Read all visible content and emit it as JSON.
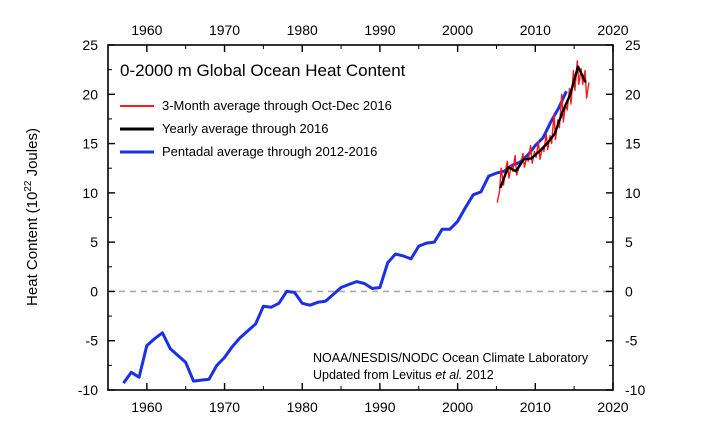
{
  "chart_data": {
    "type": "line",
    "title": "0-2000 m Global Ocean Heat Content",
    "ylabel": {
      "prefix": "Heat Content (10",
      "exponent": "22",
      "suffix": " Joules)"
    },
    "xlabel": "",
    "xlim": [
      1955,
      2020
    ],
    "ylim": [
      -10,
      25
    ],
    "xticks": [
      1960,
      1970,
      1980,
      1990,
      2000,
      2010,
      2020
    ],
    "yticks": [
      -10,
      -5,
      0,
      5,
      10,
      15,
      20,
      25
    ],
    "zero_line": {
      "value": 0,
      "color": "#aaaaaa",
      "style": "dashed"
    },
    "credit": {
      "line1": "NOAA/NESDIS/NODC Ocean Climate Laboratory",
      "line2_prefix": "Updated from Levitus ",
      "line2_italic": "et al.",
      "line2_suffix": " 2012"
    },
    "series": [
      {
        "name": "3-Month average through Oct-Dec 2016",
        "color": "#ff1a1a",
        "x": [
          2005.1,
          2005.4,
          2005.6,
          2005.9,
          2006.1,
          2006.4,
          2006.6,
          2006.9,
          2007.1,
          2007.4,
          2007.6,
          2007.9,
          2008.1,
          2008.4,
          2008.6,
          2008.9,
          2009.1,
          2009.4,
          2009.6,
          2009.9,
          2010.1,
          2010.4,
          2010.6,
          2010.9,
          2011.1,
          2011.4,
          2011.6,
          2011.9,
          2012.1,
          2012.4,
          2012.6,
          2012.9,
          2013.1,
          2013.4,
          2013.6,
          2013.9,
          2014.1,
          2014.4,
          2014.6,
          2014.9,
          2015.1,
          2015.4,
          2015.6,
          2015.9,
          2016.1,
          2016.4,
          2016.6,
          2016.9
        ],
        "values": [
          9.0,
          10.2,
          12.5,
          10.8,
          12.0,
          13.2,
          11.5,
          12.8,
          12.2,
          13.8,
          11.8,
          12.6,
          12.8,
          14.0,
          12.6,
          13.6,
          13.2,
          14.8,
          13.0,
          14.2,
          13.6,
          15.2,
          13.4,
          14.6,
          14.2,
          16.0,
          14.4,
          15.8,
          15.0,
          18.0,
          15.4,
          17.4,
          16.6,
          20.0,
          17.2,
          19.0,
          18.4,
          20.6,
          19.0,
          22.4,
          20.4,
          23.4,
          21.0,
          22.6,
          21.0,
          22.4,
          19.6,
          21.2
        ]
      },
      {
        "name": "Yearly average through 2016",
        "color": "#000000",
        "x": [
          2005.5,
          2006.5,
          2007.5,
          2008.5,
          2009.5,
          2010.5,
          2011.5,
          2012.5,
          2013.5,
          2014.5,
          2015.5,
          2016.5
        ],
        "values": [
          10.5,
          12.6,
          12.2,
          13.4,
          13.5,
          14.2,
          15.0,
          16.0,
          18.2,
          20.0,
          22.8,
          21.2
        ]
      },
      {
        "name": "Pentadal average through 2012-2016",
        "color": "#1a2fe6",
        "x": [
          1957,
          1958,
          1959,
          1960,
          1961,
          1962,
          1963,
          1964,
          1965,
          1966,
          1967,
          1968,
          1969,
          1970,
          1971,
          1972,
          1973,
          1974,
          1975,
          1976,
          1977,
          1978,
          1979,
          1980,
          1981,
          1982,
          1983,
          1984,
          1985,
          1986,
          1987,
          1988,
          1989,
          1990,
          1991,
          1992,
          1993,
          1994,
          1995,
          1996,
          1997,
          1998,
          1999,
          2000,
          2001,
          2002,
          2003,
          2004,
          2005,
          2006,
          2007,
          2008,
          2009,
          2010,
          2011,
          2012,
          2013,
          2014
        ],
        "values": [
          -9.3,
          -8.2,
          -8.7,
          -5.5,
          -4.8,
          -4.2,
          -5.8,
          -6.5,
          -7.2,
          -9.1,
          -9.0,
          -8.9,
          -7.5,
          -6.7,
          -5.6,
          -4.7,
          -4.0,
          -3.3,
          -1.5,
          -1.6,
          -1.2,
          0.0,
          -0.1,
          -1.2,
          -1.4,
          -1.1,
          -1.0,
          -0.3,
          0.4,
          0.7,
          1.0,
          0.8,
          0.3,
          0.4,
          2.9,
          3.8,
          3.6,
          3.3,
          4.6,
          4.9,
          5.0,
          6.3,
          6.3,
          7.1,
          8.5,
          9.8,
          10.1,
          11.7,
          12.0,
          12.2,
          12.8,
          13.1,
          13.8,
          14.8,
          15.6,
          17.2,
          18.6,
          20.3
        ]
      }
    ],
    "legend": {
      "placement": "top-left"
    }
  }
}
